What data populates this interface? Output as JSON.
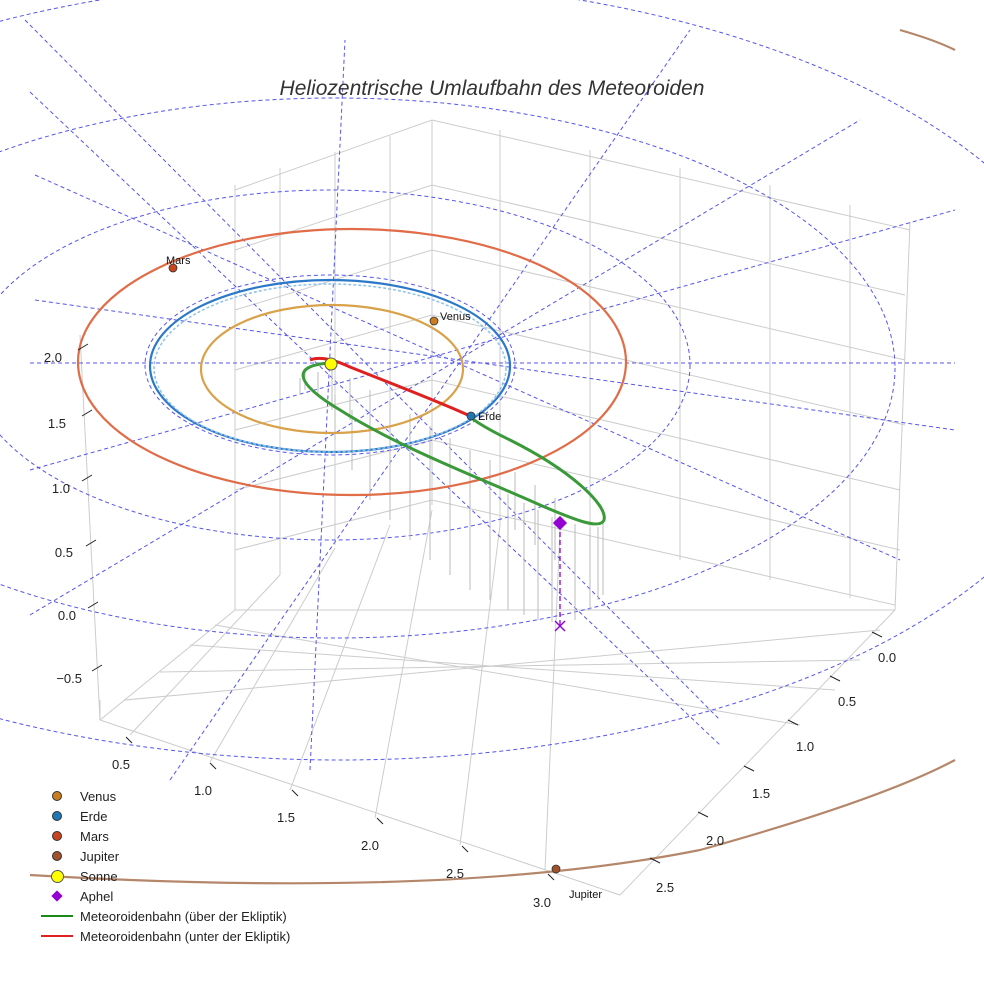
{
  "chart_data": {
    "type": "3d-orbit",
    "title": "Heliozentrische Umlaufbahn des Meteoroiden",
    "x_ticks": [
      "0.5",
      "1.0",
      "1.5",
      "2.0",
      "2.5",
      "3.0"
    ],
    "y_ticks": [
      "0.0",
      "0.5",
      "1.0",
      "1.5",
      "2.0",
      "2.5"
    ],
    "z_ticks": [
      "2.0",
      "1.5",
      "1.0",
      "0.5",
      "0.0",
      "−0.5"
    ],
    "planets": [
      {
        "name": "Venus",
        "label": "Venus",
        "radius_au": 0.72,
        "color": "#d08a2a",
        "orbit_color": "#d9a24a"
      },
      {
        "name": "Erde",
        "label": "Erde",
        "radius_au": 1.0,
        "color": "#2a7ab8",
        "orbit_color": "#2b78c8"
      },
      {
        "name": "Mars",
        "label": "Mars",
        "radius_au": 1.52,
        "color": "#c8461e",
        "orbit_color": "#e06c48"
      },
      {
        "name": "Jupiter",
        "label": "Jupiter",
        "radius_au": 5.2,
        "color": "#a0522d",
        "orbit_color": "#b5876a"
      }
    ],
    "sun": {
      "name": "Sonne",
      "color": "#ffff00"
    },
    "aphel": {
      "name": "Aphel",
      "color": "#9400d3"
    },
    "meteoroid_orbit": {
      "above_label": "Meteoroidenbahn (über der Ekliptik)",
      "above_color": "#3a9a3a",
      "below_label": "Meteoroidenbahn (unter der Ekliptik)",
      "below_color": "#e02020"
    },
    "reference_grid": {
      "style": "dashed",
      "color": "#5555ee"
    }
  },
  "legend": [
    {
      "label": "Venus",
      "kind": "dot",
      "color": "#c97d1f"
    },
    {
      "label": "Erde",
      "kind": "dot",
      "color": "#1f77b4"
    },
    {
      "label": "Mars",
      "kind": "dot",
      "color": "#c8461e"
    },
    {
      "label": "Jupiter",
      "kind": "dot",
      "color": "#a0522d"
    },
    {
      "label": "Sonne",
      "kind": "sun",
      "color": "#ffff00"
    },
    {
      "label": "Aphel",
      "kind": "diamond",
      "color": "#9400d3"
    },
    {
      "label": "Meteoroidenbahn (über der Ekliptik)",
      "kind": "line",
      "color": "#1a8a1a"
    },
    {
      "label": "Meteoroidenbahn (unter der Ekliptik)",
      "kind": "line",
      "color": "#e02020"
    }
  ]
}
